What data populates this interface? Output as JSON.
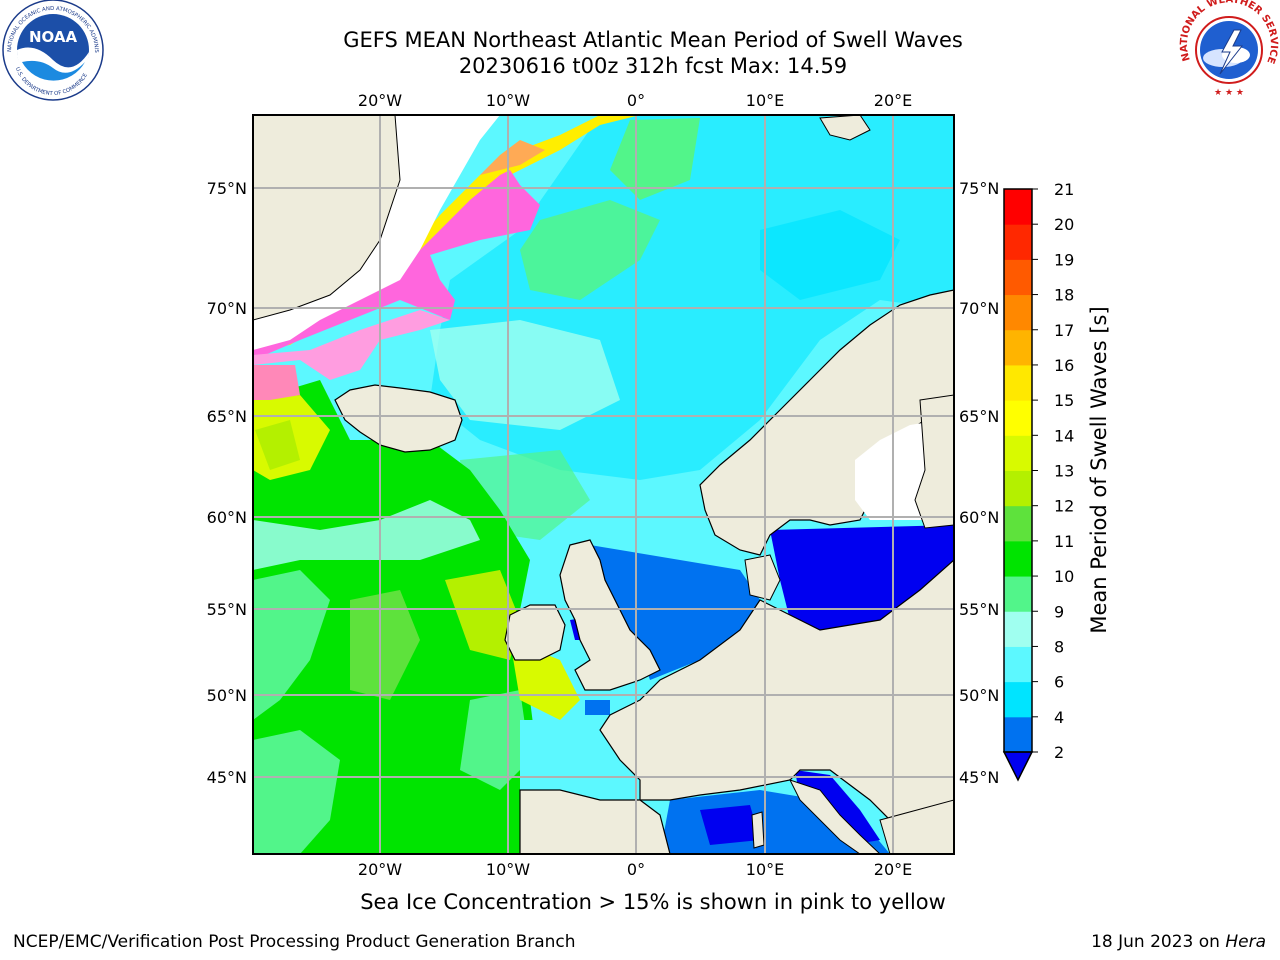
{
  "title": {
    "line1": "GEFS MEAN Northeast Atlantic Mean Period of Swell Waves",
    "line2": "20230616 t00z 312h fcst   Max: 14.59"
  },
  "logos": {
    "left": "NOAA",
    "left_ring": "NATIONAL OCEANIC AND ATMOSPHERIC ADMINISTRATION",
    "left_ring_bottom": "U.S. DEPARTMENT OF COMMERCE",
    "right_ring": "NATIONAL WEATHER SERVICE"
  },
  "map": {
    "lon_labels": [
      "20°W",
      "10°W",
      "0°",
      "10°E",
      "20°E"
    ],
    "lat_labels": [
      "75°N",
      "70°N",
      "65°N",
      "60°N",
      "55°N",
      "50°N",
      "45°N"
    ],
    "colors": {
      "land": "#eeecdc",
      "no_data": "#ffffff",
      "grid": "#b0b0b0"
    }
  },
  "colorbar": {
    "label": "Mean Period of Swell Waves [s]",
    "ticks": [
      "2",
      "4",
      "6",
      "8",
      "9",
      "10",
      "11",
      "12",
      "13",
      "14",
      "15",
      "16",
      "17",
      "18",
      "19",
      "20",
      "21"
    ],
    "colors": [
      "#0072f0",
      "#00e4ff",
      "#5cf8ff",
      "#a0fff0",
      "#52f58a",
      "#00e400",
      "#5ee23c",
      "#b4f000",
      "#d8fa00",
      "#ffff00",
      "#ffe800",
      "#ffb400",
      "#ff8800",
      "#ff5a00",
      "#ff2800",
      "#ff0000"
    ],
    "under_color": "#0000f0"
  },
  "footer": {
    "note": "Sea Ice Concentration > 15% is shown in pink to yellow",
    "credit": "NCEP/EMC/Verification Post Processing Product Generation Branch",
    "date_prefix": "18 Jun 2023 on",
    "host": "Hera"
  }
}
